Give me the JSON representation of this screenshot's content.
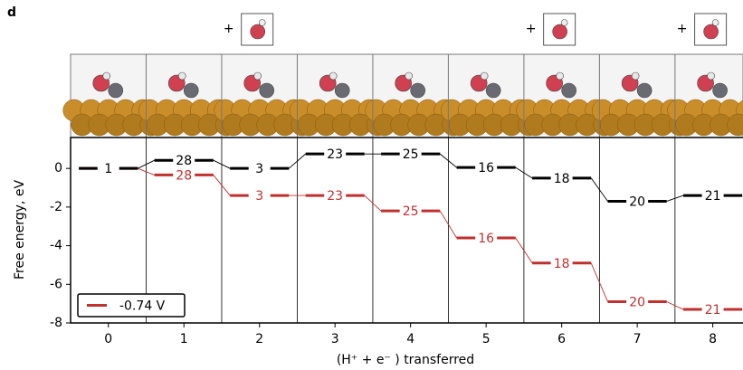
{
  "chart_data": {
    "type": "energy-levels",
    "panel_label": "d",
    "annotations": [
      "+",
      "+",
      "+"
    ],
    "ylabel": "Free energy, eV",
    "xlabel": "(H⁺ + e⁻ ) transferred",
    "x": [
      0,
      1,
      2,
      3,
      4,
      5,
      6,
      7,
      8
    ],
    "xlim": [
      -0.5,
      8.4
    ],
    "xticks": [
      0,
      1,
      2,
      3,
      4,
      5,
      6,
      7,
      8
    ],
    "ylim": [
      -8,
      1.6
    ],
    "yticks": [
      0,
      -2,
      -4,
      -6,
      -8
    ],
    "legend": "lower left",
    "series": [
      {
        "name": "-0.74 V",
        "color": "#c0302e",
        "values": [
          0,
          -0.34,
          -1.4,
          -1.4,
          -2.2,
          -3.6,
          -4.9,
          -6.9,
          -7.3
        ],
        "value_labels": [
          null,
          "28",
          "3",
          "23",
          "25",
          "16",
          "18",
          "20",
          "21"
        ]
      },
      {
        "color": "#000000",
        "values": [
          0,
          0.42,
          0,
          0.75,
          0.75,
          0.05,
          -0.5,
          -1.7,
          -1.4
        ],
        "value_labels": [
          "1",
          "28",
          "3",
          "23",
          "25",
          "16",
          "18",
          "20",
          "21"
        ]
      }
    ]
  }
}
